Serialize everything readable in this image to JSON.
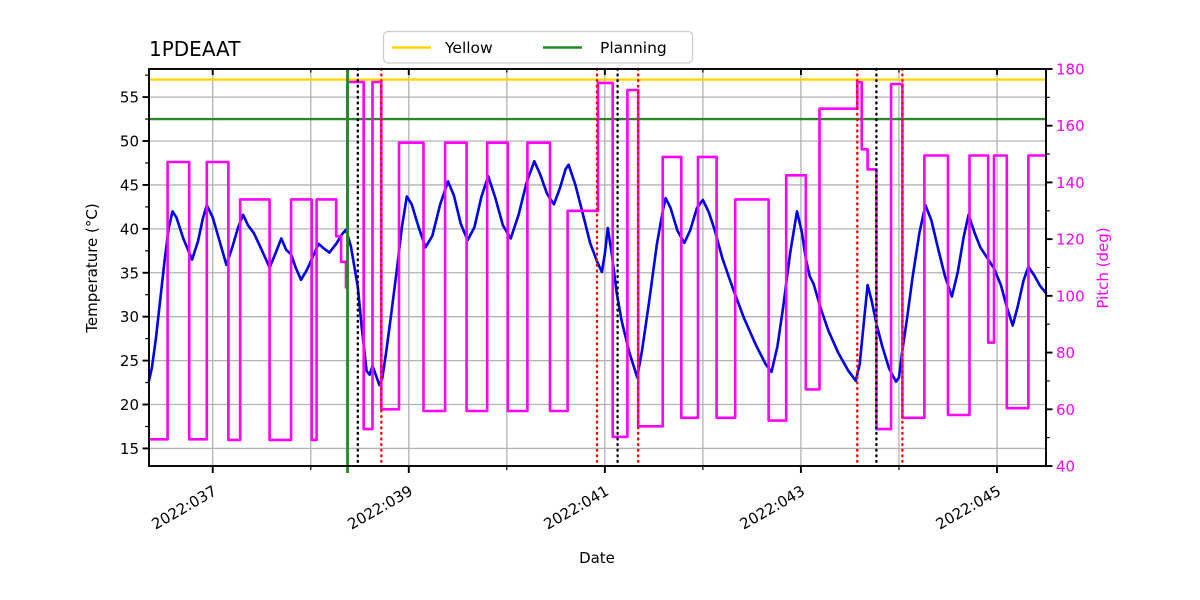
{
  "title": "1PDEAAT",
  "legend": [
    {
      "label": "Yellow",
      "color": "#ffd700"
    },
    {
      "label": "Planning",
      "color": "#228b22"
    }
  ],
  "colors": {
    "temperature_line": "#0000ee",
    "pitch_line": "#ff00ff",
    "yellow_limit": "#ffd700",
    "planning_limit": "#228b22",
    "green_vline": "#1e8b1e",
    "red_dotted": "#ff0000",
    "black_dotted": "#000000",
    "grid": "#b2b2b2",
    "spine": "#000000",
    "right_axis_text": "#ff00ff"
  },
  "chart_data": {
    "type": "line",
    "title": "1PDEAAT",
    "xlabel": "Date",
    "ylabel_left": "Temperature (°C)",
    "ylabel_right": "Pitch (deg)",
    "x_unit": "2022 day-of-year",
    "xlim": [
      36.35,
      45.5
    ],
    "ylim_left": [
      13.0,
      58.2
    ],
    "ylim_right": [
      40,
      180
    ],
    "grid": true,
    "legend_position": "top-center-outside",
    "xticks_major": [
      {
        "day": 37,
        "label": "2022:037"
      },
      {
        "day": 39,
        "label": "2022:039"
      },
      {
        "day": 41,
        "label": "2022:041"
      },
      {
        "day": 43,
        "label": "2022:043"
      },
      {
        "day": 45,
        "label": "2022:045"
      }
    ],
    "xticks_minor_days": [
      38,
      40,
      42,
      44
    ],
    "grid_days": [
      37,
      38,
      39,
      40,
      41,
      42,
      43,
      44,
      45
    ],
    "yticks_left": [
      15,
      20,
      25,
      30,
      35,
      40,
      45,
      50,
      55
    ],
    "yticks_left_minor": [
      17.5,
      22.5,
      27.5,
      32.5,
      37.5,
      42.5,
      47.5,
      52.5,
      57.5
    ],
    "yticks_right": [
      40,
      60,
      80,
      100,
      120,
      140,
      160,
      180
    ],
    "yticks_right_minor": [
      50,
      70,
      90,
      110,
      130,
      150,
      170
    ],
    "limits": {
      "yellow_limit_c": 57.0,
      "planning_limit_c": 52.5
    },
    "events": {
      "green_solid_vline_day": 38.375,
      "black_dotted_vline_days": [
        38.48,
        41.13,
        43.77
      ],
      "red_dotted_vline_days": [
        38.72,
        40.92,
        41.34,
        43.575,
        44.035
      ]
    },
    "series": [
      {
        "name": "temperature_c",
        "axis": "left",
        "style": "line",
        "color": "#0000ee",
        "points": [
          [
            36.35,
            22.7
          ],
          [
            36.38,
            24.2
          ],
          [
            36.42,
            27.5
          ],
          [
            36.46,
            31.5
          ],
          [
            36.51,
            36.5
          ],
          [
            36.55,
            40.0
          ],
          [
            36.59,
            42.0
          ],
          [
            36.63,
            41.3
          ],
          [
            36.7,
            38.9
          ],
          [
            36.79,
            36.5
          ],
          [
            36.85,
            38.6
          ],
          [
            36.9,
            41.2
          ],
          [
            36.94,
            42.7
          ],
          [
            37.0,
            41.3
          ],
          [
            37.07,
            38.6
          ],
          [
            37.14,
            35.9
          ],
          [
            37.2,
            37.9
          ],
          [
            37.26,
            40.2
          ],
          [
            37.31,
            41.6
          ],
          [
            37.36,
            40.4
          ],
          [
            37.42,
            39.5
          ],
          [
            37.5,
            37.6
          ],
          [
            37.58,
            35.6
          ],
          [
            37.64,
            37.2
          ],
          [
            37.7,
            38.9
          ],
          [
            37.75,
            37.6
          ],
          [
            37.8,
            37.1
          ],
          [
            37.85,
            35.5
          ],
          [
            37.9,
            34.2
          ],
          [
            37.96,
            35.3
          ],
          [
            38.02,
            36.8
          ],
          [
            38.08,
            38.3
          ],
          [
            38.13,
            37.8
          ],
          [
            38.19,
            37.3
          ],
          [
            38.26,
            38.3
          ],
          [
            38.32,
            39.4
          ],
          [
            38.36,
            39.9
          ],
          [
            38.41,
            38.0
          ],
          [
            38.44,
            36.0
          ],
          [
            38.48,
            33.4
          ],
          [
            38.52,
            28.8
          ],
          [
            38.57,
            23.8
          ],
          [
            38.6,
            23.4
          ],
          [
            38.63,
            24.4
          ],
          [
            38.67,
            23.2
          ],
          [
            38.7,
            22.2
          ],
          [
            38.73,
            23.0
          ],
          [
            38.77,
            26.0
          ],
          [
            38.82,
            30.2
          ],
          [
            38.88,
            35.5
          ],
          [
            38.93,
            40.2
          ],
          [
            38.98,
            43.7
          ],
          [
            39.03,
            42.8
          ],
          [
            39.1,
            40.2
          ],
          [
            39.17,
            37.9
          ],
          [
            39.24,
            39.2
          ],
          [
            39.32,
            42.8
          ],
          [
            39.4,
            45.4
          ],
          [
            39.46,
            43.8
          ],
          [
            39.53,
            40.6
          ],
          [
            39.6,
            38.7
          ],
          [
            39.67,
            40.2
          ],
          [
            39.74,
            43.6
          ],
          [
            39.81,
            46.0
          ],
          [
            39.88,
            43.6
          ],
          [
            39.96,
            40.4
          ],
          [
            40.04,
            38.9
          ],
          [
            40.12,
            41.6
          ],
          [
            40.2,
            45.2
          ],
          [
            40.28,
            47.7
          ],
          [
            40.34,
            46.2
          ],
          [
            40.41,
            44.0
          ],
          [
            40.48,
            42.8
          ],
          [
            40.54,
            44.6
          ],
          [
            40.6,
            46.8
          ],
          [
            40.63,
            47.3
          ],
          [
            40.7,
            45.0
          ],
          [
            40.78,
            41.5
          ],
          [
            40.85,
            38.4
          ],
          [
            40.92,
            36.3
          ],
          [
            40.97,
            35.1
          ],
          [
            41.0,
            37.2
          ],
          [
            41.03,
            40.1
          ],
          [
            41.07,
            37.2
          ],
          [
            41.12,
            32.8
          ],
          [
            41.17,
            29.6
          ],
          [
            41.25,
            25.9
          ],
          [
            41.33,
            23.1
          ],
          [
            41.38,
            26.2
          ],
          [
            41.45,
            31.6
          ],
          [
            41.53,
            38.2
          ],
          [
            41.59,
            42.0
          ],
          [
            41.62,
            43.5
          ],
          [
            41.67,
            42.4
          ],
          [
            41.74,
            39.8
          ],
          [
            41.81,
            38.4
          ],
          [
            41.87,
            39.8
          ],
          [
            41.94,
            42.4
          ],
          [
            42.0,
            43.3
          ],
          [
            42.06,
            41.9
          ],
          [
            42.12,
            39.9
          ],
          [
            42.2,
            36.6
          ],
          [
            42.3,
            33.4
          ],
          [
            42.42,
            29.8
          ],
          [
            42.54,
            26.8
          ],
          [
            42.64,
            24.6
          ],
          [
            42.7,
            23.7
          ],
          [
            42.76,
            26.6
          ],
          [
            42.82,
            31.2
          ],
          [
            42.89,
            37.2
          ],
          [
            42.96,
            42.0
          ],
          [
            43.01,
            39.6
          ],
          [
            43.05,
            36.6
          ],
          [
            43.09,
            34.6
          ],
          [
            43.13,
            33.7
          ],
          [
            43.2,
            31.0
          ],
          [
            43.28,
            28.4
          ],
          [
            43.38,
            25.9
          ],
          [
            43.48,
            23.9
          ],
          [
            43.56,
            22.7
          ],
          [
            43.6,
            24.6
          ],
          [
            43.64,
            29.2
          ],
          [
            43.68,
            33.6
          ],
          [
            43.72,
            31.9
          ],
          [
            43.77,
            29.2
          ],
          [
            43.83,
            26.6
          ],
          [
            43.9,
            24.1
          ],
          [
            43.97,
            22.6
          ],
          [
            44.0,
            23.1
          ],
          [
            44.03,
            25.8
          ],
          [
            44.08,
            29.6
          ],
          [
            44.14,
            34.6
          ],
          [
            44.21,
            39.6
          ],
          [
            44.27,
            42.7
          ],
          [
            44.33,
            41.0
          ],
          [
            44.4,
            37.7
          ],
          [
            44.47,
            34.6
          ],
          [
            44.54,
            32.3
          ],
          [
            44.6,
            35.1
          ],
          [
            44.66,
            39.1
          ],
          [
            44.71,
            41.6
          ],
          [
            44.77,
            39.6
          ],
          [
            44.83,
            37.9
          ],
          [
            44.9,
            36.7
          ],
          [
            44.97,
            35.5
          ],
          [
            45.04,
            33.6
          ],
          [
            45.1,
            31.1
          ],
          [
            45.16,
            29.0
          ],
          [
            45.21,
            31.1
          ],
          [
            45.27,
            34.1
          ],
          [
            45.32,
            35.7
          ],
          [
            45.38,
            34.7
          ],
          [
            45.44,
            33.5
          ],
          [
            45.5,
            32.7
          ]
        ]
      },
      {
        "name": "pitch_deg",
        "axis": "right",
        "style": "step-post",
        "color": "#ff00ff",
        "points": [
          [
            36.35,
            49.4
          ],
          [
            36.54,
            147.2
          ],
          [
            36.76,
            49.4
          ],
          [
            36.94,
            147.2
          ],
          [
            37.16,
            49.2
          ],
          [
            37.28,
            134.0
          ],
          [
            37.58,
            49.2
          ],
          [
            37.8,
            134.0
          ],
          [
            38.01,
            49.2
          ],
          [
            38.06,
            134.0
          ],
          [
            38.26,
            121.0
          ],
          [
            38.31,
            112.0
          ],
          [
            38.36,
            103.0
          ],
          [
            38.375,
            175.4
          ],
          [
            38.54,
            53.0
          ],
          [
            38.63,
            175.4
          ],
          [
            38.72,
            60.0
          ],
          [
            38.9,
            154.0
          ],
          [
            39.15,
            59.4
          ],
          [
            39.37,
            154.0
          ],
          [
            39.59,
            59.4
          ],
          [
            39.8,
            154.0
          ],
          [
            40.01,
            59.4
          ],
          [
            40.21,
            154.0
          ],
          [
            40.44,
            59.4
          ],
          [
            40.62,
            130.0
          ],
          [
            40.93,
            175.1
          ],
          [
            41.08,
            50.3
          ],
          [
            41.23,
            172.6
          ],
          [
            41.34,
            54.0
          ],
          [
            41.59,
            149.0
          ],
          [
            41.78,
            57.0
          ],
          [
            41.95,
            149.0
          ],
          [
            42.14,
            57.0
          ],
          [
            42.33,
            134.0
          ],
          [
            42.67,
            56.0
          ],
          [
            42.85,
            142.5
          ],
          [
            43.05,
            67.0
          ],
          [
            43.19,
            166.0
          ],
          [
            43.575,
            175.3
          ],
          [
            43.62,
            151.7
          ],
          [
            43.68,
            144.6
          ],
          [
            43.77,
            53.0
          ],
          [
            43.92,
            174.7
          ],
          [
            44.035,
            57.0
          ],
          [
            44.26,
            149.5
          ],
          [
            44.5,
            58.0
          ],
          [
            44.72,
            149.5
          ],
          [
            44.91,
            83.5
          ],
          [
            44.97,
            149.5
          ],
          [
            45.1,
            60.4
          ],
          [
            45.32,
            149.5
          ]
        ]
      }
    ]
  }
}
